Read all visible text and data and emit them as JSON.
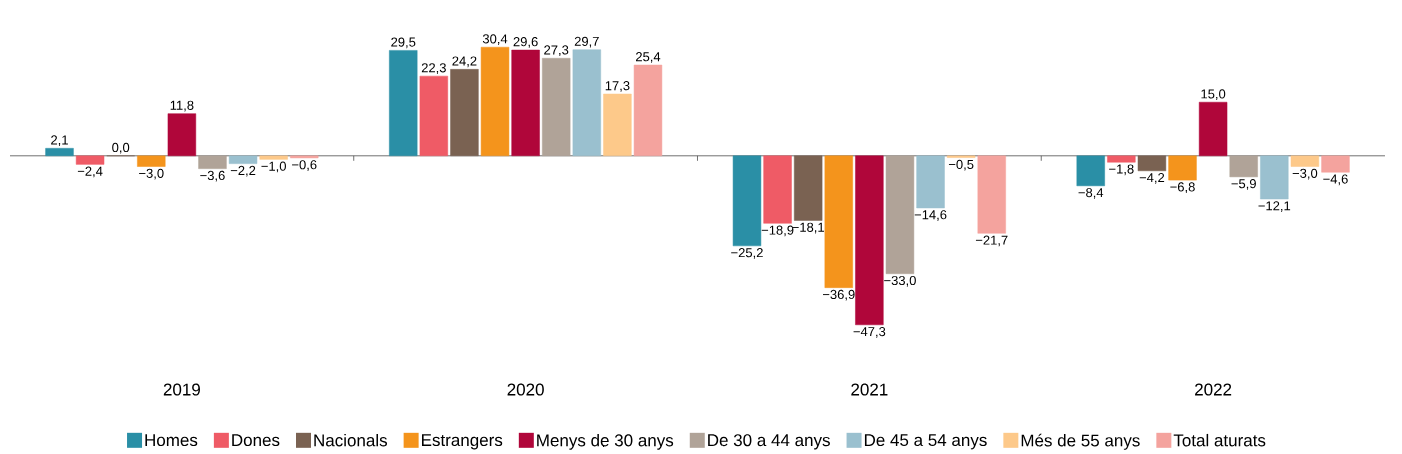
{
  "chart_data": {
    "type": "bar",
    "categories": [
      "2019",
      "2020",
      "2021",
      "2022"
    ],
    "legend": "bottom",
    "series": [
      {
        "name": "Homes",
        "color": "#2a8fa6",
        "values": [
          2.1,
          29.5,
          -25.2,
          -8.4
        ],
        "value_labels": [
          "2,1",
          "29,5",
          "−25,2",
          "−8,4"
        ]
      },
      {
        "name": "Dones",
        "color": "#ef5b66",
        "values": [
          -2.4,
          22.3,
          -18.9,
          -1.8
        ],
        "value_labels": [
          "−2,4",
          "22,3",
          "−18,9",
          "−1,8"
        ]
      },
      {
        "name": "Nacionals",
        "color": "#7a6252",
        "values": [
          0.0,
          24.2,
          -18.1,
          -4.2
        ],
        "value_labels": [
          "0,0",
          "24,2",
          "−18,1",
          "−4,2"
        ]
      },
      {
        "name": "Estrangers",
        "color": "#f4941c",
        "values": [
          -3.0,
          30.4,
          -36.9,
          -6.8
        ],
        "value_labels": [
          "−3,0",
          "30,4",
          "−36,9",
          "−6,8"
        ]
      },
      {
        "name": "Menys de 30 anys",
        "color": "#b0063a",
        "values": [
          11.8,
          29.6,
          -47.3,
          15.0
        ],
        "value_labels": [
          "11,8",
          "29,6",
          "−47,3",
          "15,0"
        ]
      },
      {
        "name": "De 30 a 44 anys",
        "color": "#b0a398",
        "values": [
          -3.6,
          27.3,
          -33.0,
          -5.9
        ],
        "value_labels": [
          "−3,6",
          "27,3",
          "−33,0",
          "−5,9"
        ]
      },
      {
        "name": "De 45 a 54 anys",
        "color": "#9ac0cf",
        "values": [
          -2.2,
          29.7,
          -14.6,
          -12.1
        ],
        "value_labels": [
          "−2,2",
          "29,7",
          "−14,6",
          "−12,1"
        ]
      },
      {
        "name": "Més de 55 anys",
        "color": "#fdc98a",
        "values": [
          -1.0,
          17.3,
          -0.5,
          -3.0
        ],
        "value_labels": [
          "−1,0",
          "17,3",
          "−0,5",
          "−3,0"
        ]
      },
      {
        "name": "Total aturats",
        "color": "#f4a39e",
        "values": [
          -0.6,
          25.4,
          -21.7,
          -4.6
        ],
        "value_labels": [
          "−0,6",
          "25,4",
          "−21,7",
          "−4,6"
        ]
      }
    ]
  }
}
